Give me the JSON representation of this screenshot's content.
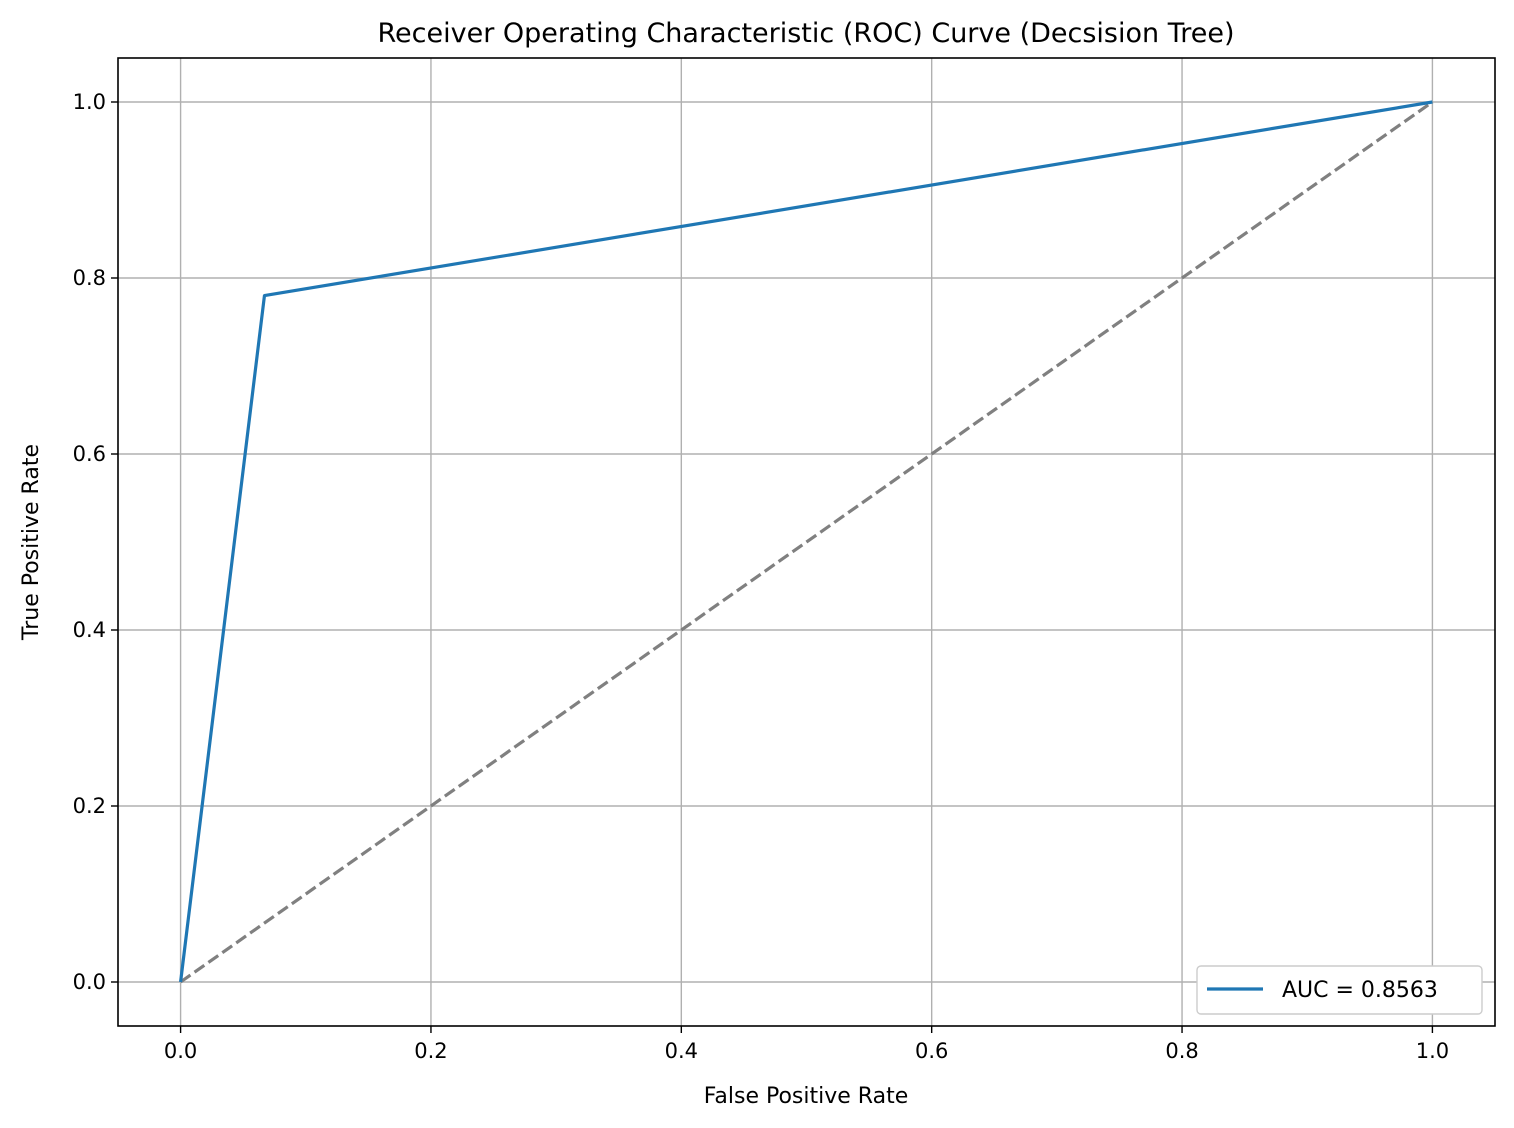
{
  "chart_data": {
    "type": "line",
    "title": "Receiver Operating Characteristic (ROC) Curve (Decsision Tree)",
    "xlabel": "False Positive Rate",
    "ylabel": "True Positive Rate",
    "xlim": [
      -0.05,
      1.05
    ],
    "ylim": [
      -0.05,
      1.05
    ],
    "xticks": [
      0.0,
      0.2,
      0.4,
      0.6,
      0.8,
      1.0
    ],
    "yticks": [
      0.0,
      0.2,
      0.4,
      0.6,
      0.8,
      1.0
    ],
    "xtick_labels": [
      "0.0",
      "0.2",
      "0.4",
      "0.6",
      "0.8",
      "1.0"
    ],
    "ytick_labels": [
      "0.0",
      "0.2",
      "0.4",
      "0.6",
      "0.8",
      "1.0"
    ],
    "grid": true,
    "legend_position": "lower-right",
    "series": [
      {
        "name": "AUC = 0.8563",
        "style": "solid",
        "color": "#1f77b4",
        "x": [
          0.0,
          0.067,
          1.0
        ],
        "y": [
          0.0,
          0.78,
          1.0
        ]
      },
      {
        "style": "dashed",
        "color": "#808080",
        "x": [
          0.0,
          1.0
        ],
        "y": [
          0.0,
          1.0
        ]
      }
    ]
  }
}
